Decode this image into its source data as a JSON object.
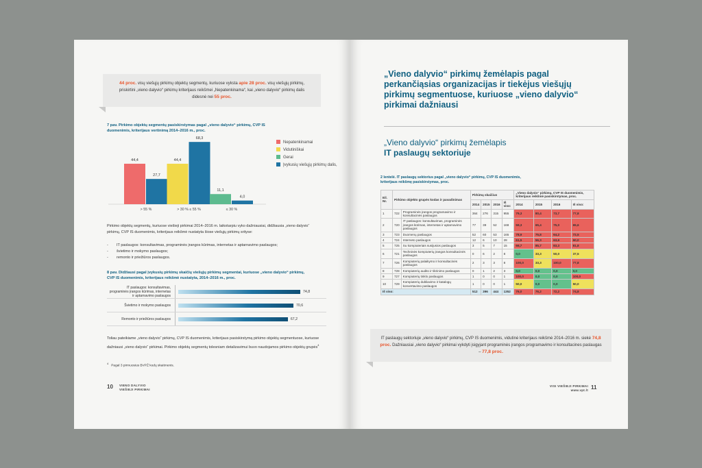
{
  "left_page": {
    "callout": [
      {
        "text": "44 proc.",
        "emphasis": true
      },
      {
        "text": " visų viešųjų pirkimų objektų segmentų, kuriuose vyksta ",
        "emphasis": false
      },
      {
        "text": "apie 28 proc.",
        "emphasis": true
      },
      {
        "text": " visų viešųjų pirkimų, priskirtini „vieno dalyvio“ pirkimų kriterijaus reikšmei „Nepatenkinama“, kai „vieno dalyvio“ pirkimų dalis didesnė nei ",
        "emphasis": false
      },
      {
        "text": "55 proc.",
        "emphasis": true
      }
    ],
    "figure7": {
      "type": "bar",
      "title": "7 pav. Pirkimo objektų segmentų pasiskirstymas pagal „vieno dalyvio“ pirkimų, CVP IS duomenimis, kriterijaus vertinimą 2014–2016 m., proc.",
      "categories": [
        "> 55 %",
        "> 30 % ≤ 55 %",
        "≤ 30 %"
      ],
      "series": [
        {
          "name": "Nepatenkinamai",
          "color": "#ee6b6b",
          "values": [
            44.4,
            null,
            null
          ],
          "value_labels": [
            "44,4",
            null,
            null
          ]
        },
        {
          "name": "Vidutiniškai",
          "color": "#f1d94a",
          "values": [
            null,
            44.4,
            null
          ],
          "value_labels": [
            null,
            "44,4",
            null
          ]
        },
        {
          "name": "Gerai",
          "color": "#5dbb8f",
          "values": [
            null,
            null,
            11.1
          ],
          "value_labels": [
            null,
            null,
            "11,1"
          ]
        },
        {
          "name": "Įvykusių viešųjų pirkimų dalis, proc.",
          "color": "#1f74a3",
          "values": [
            27.7,
            68.3,
            4.0
          ],
          "value_labels": [
            "27,7",
            "68,3",
            "4,0"
          ]
        }
      ]
    },
    "paragraph1": "Pirkimo objektų segmentų, kuriuose viešieji pirkimai 2014–2016 m. laikotarpiu vyko dažniausiai, didžiausia „vieno dalyvio“ pirkimų, CVP IS duomenimis, kriterijaus reikšmė nustatyta šiose viešųjų pirkimų srityse:",
    "list": [
      "IT paslaugos: konsultavimas, programinės įrangos kūrimas, internetas ir aptarnavimo paslaugos;",
      "švietimo ir mokymo paslaugos;",
      "remonto ir priežiūros paslaugos."
    ],
    "figure8": {
      "type": "bar",
      "orientation": "horizontal",
      "title": "8 pav. Didžiausi pagal įvykusių pirkimų skaičių viešųjų pirkimų segmentai, kuriuose „vieno dalyvio“ pirkimų, CVP IS duomenimis, kriterijaus reikšmė nustatyta, 2014–2016 m., proc.",
      "categories": [
        "IT paslaugos: konsultavimas, programinės įrangos kūrimas, internetas ir aptarnavimo paslaugos",
        "Švietimo ir mokymo paslaugos",
        "Remonto ir priežiūros paslaugos"
      ],
      "values": [
        74.8,
        70.6,
        67.2
      ],
      "value_labels": [
        "74,8",
        "70,6",
        "67,2"
      ],
      "color": "#1f74a3"
    },
    "paragraph2": {
      "text": "Toliau pateikiame „vieno dalyvio“ pirkimų, CVP IS duomenimis, kriterijaus pasiskirstymą pirkimo objektų segmentuose, kuriuose dažniausi „vieno dalyvio“ pirkimai. Pirkimo objektų segmentų tolesniam detalizavimui buvo naudojamos pirkimo objektų grupės",
      "footnote_ref": "4"
    },
    "footnote": {
      "mark": "4",
      "text": "Pagal 3 pirmuosius BVPŽ kodų skaitmenis."
    },
    "page_number": 10,
    "footer": [
      "VIENO DALYVIO",
      "VIEŠIEJI PIRKIMAI"
    ]
  },
  "right_page": {
    "heading": "„Vieno dalyvio“ pirkimų žemėlapis pagal perkančiąsias organizacijas ir tiekėjus viešųjų pirkimų segmentuose, kuriuose „vieno dalyvio“ pirkimai dažniausi",
    "subheading": [
      "„Vieno dalyvio“ pirkimų žemėlapis",
      "IT paslaugų sektoriuje"
    ],
    "table": {
      "title": "2 lentelė. IT paslaugų sektorius pagal „vieno dalyvio“ pirkimų, CVP IS duomenimis, kriterijaus reikšmę pasiskirstymas, proc.",
      "headers": {
        "no": "Eil. Nr.",
        "group": "Pirkimo objekto grupės kodas ir pavadinimas",
        "count": "Pirkimų skaičius",
        "share": "„Vieno dalyvio“ pirkimų, CVP IS duomenimis, kriterijaus reikšmė pasiskirstymas, proc."
      },
      "years": [
        "2014",
        "2015",
        "2016",
        "Iš viso:"
      ],
      "palette": {
        "red": "#e9625c",
        "yellow": "#efe15c",
        "green": "#63c18c"
      },
      "rows": [
        {
          "no": 1,
          "code": 722,
          "name": "Programinės įrangos programavimo ir konsultacinės paslaugos",
          "counts": [
            364,
            276,
            315,
            955
          ],
          "shares": [
            "79,3",
            "80,4",
            "73,7",
            "77,8"
          ],
          "share_colors": [
            "red",
            "red",
            "red",
            "red"
          ]
        },
        {
          "no": 2,
          "code": 720,
          "name": "IT paslaugos: konsultavimas, programinės įrangos kūrimas, internetas ir aptarnavimo paslaugos",
          "counts": [
            77,
            39,
            52,
            168
          ],
          "shares": [
            "59,3",
            "65,4",
            "75,0",
            "65,6"
          ],
          "share_colors": [
            "red",
            "red",
            "red",
            "red"
          ]
        },
        {
          "no": 3,
          "code": 723,
          "name": "Duomenų paslaugos",
          "counts": [
            52,
            60,
            53,
            165
          ],
          "shares": [
            "78,9",
            "75,8",
            "64,2",
            "72,5"
          ],
          "share_colors": [
            "red",
            "red",
            "red",
            "red"
          ]
        },
        {
          "no": 4,
          "code": 724,
          "name": "Interneto paslaugos",
          "counts": [
            12,
            6,
            10,
            28
          ],
          "shares": [
            "61,5",
            "56,3",
            "63,6",
            "60,0"
          ],
          "share_colors": [
            "red",
            "red",
            "red",
            "red"
          ]
        },
        {
          "no": 5,
          "code": 725,
          "name": "Su kompiuteriais susijusios paslaugos",
          "counts": [
            3,
            5,
            7,
            15
          ],
          "shares": [
            "66,7",
            "85,7",
            "83,3",
            "81,8"
          ],
          "share_colors": [
            "red",
            "red",
            "red",
            "red"
          ]
        },
        {
          "no": 6,
          "code": 721,
          "name": "Techninės kompiuterių įrangos konsultacinės paslaugos",
          "counts": [
            0,
            6,
            2,
            8
          ],
          "shares": [
            "0,0",
            "33,3",
            "50,0",
            "37,5"
          ],
          "share_colors": [
            "green",
            "yellow",
            "yellow",
            "yellow"
          ]
        },
        {
          "no": 7,
          "code": 726,
          "name": "Kompiuterių palaikymo ir konsultacinės paslaugos",
          "counts": [
            2,
            3,
            3,
            8
          ],
          "shares": [
            "100,0",
            "33,3",
            "100,0",
            "77,8"
          ],
          "share_colors": [
            "red",
            "yellow",
            "red",
            "red"
          ]
        },
        {
          "no": 8,
          "code": 728,
          "name": "Kompiuterių audito ir tikrinimo paslaugos",
          "counts": [
            0,
            1,
            2,
            3
          ],
          "shares": [
            "0,0",
            "0,0",
            "0,0",
            "0,0"
          ],
          "share_colors": [
            "green",
            "green",
            "green",
            "green"
          ]
        },
        {
          "no": 9,
          "code": 727,
          "name": "Kompiuterių tinklo paslaugos",
          "counts": [
            1,
            0,
            0,
            1
          ],
          "shares": [
            "100,0",
            "0,0",
            "0,0",
            "100,0"
          ],
          "share_colors": [
            "red",
            "green",
            "green",
            "red"
          ]
        },
        {
          "no": 10,
          "code": 729,
          "name": "Kompiuterių dubliavimo ir katalogų konvertavimo paslaugos",
          "counts": [
            1,
            0,
            0,
            1
          ],
          "shares": [
            "50,0",
            "0,0",
            "0,0",
            "50,0"
          ],
          "share_colors": [
            "yellow",
            "green",
            "green",
            "yellow"
          ]
        }
      ],
      "total": {
        "label": "Iš viso:",
        "counts": [
          512,
          396,
          444,
          1352
        ],
        "shares": [
          "76,0",
          "76,2",
          "72,2",
          "74,8"
        ],
        "share_colors": [
          "red",
          "red",
          "red",
          "red"
        ]
      }
    },
    "callout": [
      {
        "text": "IT paslaugų sektoriuje „vieno dalyvio“ pirkimų, CVP IS duomenimis, vidutinė kriterijaus reikšmė 2014–2016 m. siekė ",
        "emphasis": false
      },
      {
        "text": "74,8 proc.",
        "emphasis": true
      },
      {
        "text": " Dažniausiai „vieno dalyvio“ pirkimai vykdyti įsigyjant programinės įrangos programavimo ir konsultacines paslaugas – ",
        "emphasis": false
      },
      {
        "text": "77,8 proc.",
        "emphasis": true
      }
    ],
    "footer": [
      "VISI VIEŠIEJI PIRKIMAI",
      "www.vpt.lt"
    ],
    "page_number": 11
  }
}
